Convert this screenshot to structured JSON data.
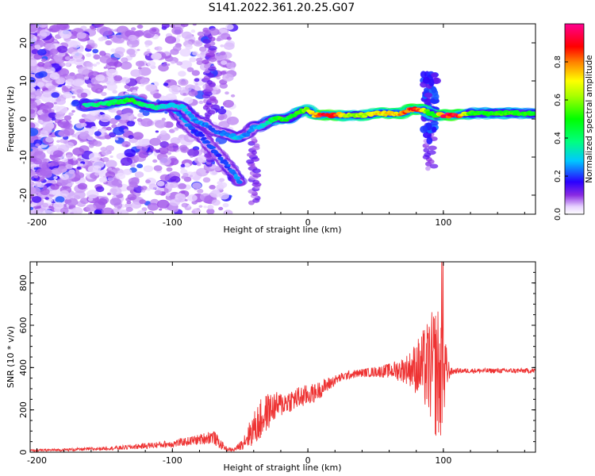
{
  "title": "S141.2022.361.20.25.G07",
  "chart_data": [
    {
      "type": "heatmap",
      "xlabel": "Height of straight line (km)",
      "ylabel": "Frequency (Hz)",
      "xlim": [
        -205,
        168
      ],
      "ylim": [
        -25,
        25
      ],
      "xticks": [
        -200,
        -100,
        0,
        100
      ],
      "yticks": [
        -20,
        -10,
        0,
        10,
        20
      ],
      "colorbar": {
        "label": "Normalized spectral amplitude",
        "range": [
          0.0,
          1.0
        ],
        "ticks": [
          0.0,
          0.2,
          0.4,
          0.6,
          0.8
        ],
        "tick_labels": [
          "0.0",
          "0.2",
          "0.4",
          "0.6",
          "0.8"
        ],
        "colormap": "gist_ncar-like (white, purple, blue, cyan, green, yellow, orange, red, magenta)"
      },
      "ridge": {
        "x": [
          -165,
          -150,
          -140,
          -130,
          -120,
          -110,
          -100,
          -92,
          -85,
          -78,
          -70,
          -60,
          -52,
          -45,
          -40,
          -35,
          -30,
          -25,
          -20,
          -15,
          -10,
          -5,
          0,
          5,
          10,
          20,
          30,
          40,
          50,
          60,
          70,
          75,
          80,
          85,
          90,
          95,
          100,
          110,
          120,
          130,
          140,
          150,
          160,
          168
        ],
        "y": [
          3.5,
          4,
          4.5,
          5,
          3.5,
          3,
          3.5,
          3,
          0,
          -1,
          -3,
          -4,
          -5,
          -4,
          -2,
          -2,
          -1,
          0,
          0,
          0,
          1,
          2,
          2.5,
          1,
          1,
          1,
          1,
          1,
          1.5,
          1.5,
          1.5,
          2.5,
          2.5,
          2.5,
          1.5,
          1,
          1,
          1,
          1.5,
          1.5,
          1.5,
          1.5,
          1.5,
          1.5
        ],
        "amplitude": [
          0.35,
          0.4,
          0.45,
          0.5,
          0.4,
          0.35,
          0.3,
          0.3,
          0.25,
          0.25,
          0.2,
          0.25,
          0.3,
          0.25,
          0.25,
          0.3,
          0.35,
          0.45,
          0.5,
          0.45,
          0.45,
          0.55,
          0.6,
          0.75,
          0.9,
          0.85,
          0.6,
          0.6,
          0.7,
          0.7,
          0.8,
          0.8,
          0.9,
          0.7,
          0.5,
          0.5,
          0.9,
          0.9,
          0.5,
          0.5,
          0.5,
          0.5,
          0.5,
          0.45
        ]
      },
      "descending_branch": {
        "x": [
          -100,
          -95,
          -90,
          -85,
          -80,
          -75,
          -70,
          -65,
          -60,
          -55,
          -50
        ],
        "y": [
          3,
          1,
          -1,
          -3,
          -4,
          -6,
          -8,
          -10,
          -12,
          -14,
          -17
        ],
        "amplitude": [
          0.3,
          0.25,
          0.25,
          0.2,
          0.2,
          0.2,
          0.2,
          0.2,
          0.2,
          0.25,
          0.25
        ]
      }
    },
    {
      "type": "line",
      "xlabel": "Height of straight line (km)",
      "ylabel": "SNR (10 * v/v)",
      "xlim": [
        -205,
        168
      ],
      "ylim": [
        0,
        900
      ],
      "xticks": [
        -200,
        -100,
        0,
        100
      ],
      "yticks": [
        0,
        200,
        400,
        600,
        800
      ],
      "series": [
        {
          "color": "#ee3333",
          "x": [
            -205,
            -190,
            -175,
            -160,
            -150,
            -140,
            -130,
            -120,
            -110,
            -100,
            -90,
            -80,
            -70,
            -65,
            -60,
            -55,
            -50,
            -45,
            -40,
            -35,
            -30,
            -25,
            -20,
            -15,
            -10,
            -5,
            0,
            5,
            10,
            15,
            20,
            25,
            30,
            40,
            50,
            60,
            70,
            75,
            80,
            85,
            90,
            95,
            100,
            102,
            105,
            110,
            120,
            130,
            140,
            150,
            160,
            168
          ],
          "y": [
            8,
            10,
            12,
            15,
            18,
            20,
            25,
            30,
            35,
            40,
            50,
            60,
            75,
            40,
            15,
            10,
            30,
            70,
            110,
            150,
            190,
            215,
            225,
            240,
            250,
            260,
            270,
            280,
            300,
            320,
            340,
            355,
            365,
            375,
            380,
            385,
            390,
            395,
            400,
            400,
            395,
            380,
            370,
            390,
            380,
            385,
            385,
            385,
            385,
            385,
            385,
            385
          ],
          "noise_amplitude": [
            5,
            6,
            7,
            8,
            8,
            10,
            12,
            14,
            16,
            18,
            20,
            25,
            35,
            25,
            10,
            8,
            20,
            50,
            80,
            100,
            90,
            70,
            60,
            55,
            55,
            55,
            50,
            45,
            40,
            35,
            25,
            20,
            20,
            20,
            25,
            35,
            60,
            80,
            130,
            180,
            250,
            330,
            300,
            120,
            20,
            12,
            12,
            12,
            12,
            12,
            12,
            12
          ]
        }
      ]
    }
  ]
}
